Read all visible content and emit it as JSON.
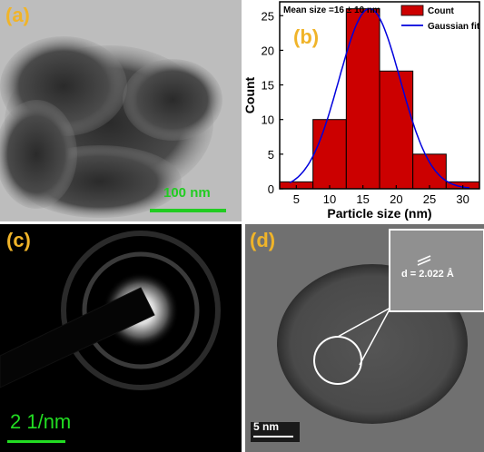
{
  "panels": {
    "a": {
      "letter": "(a)",
      "scale_label": "100 nm"
    },
    "b": {
      "letter": "(b)"
    },
    "c": {
      "letter": "(c)",
      "scale_label": "2 1/nm"
    },
    "d": {
      "letter": "(d)",
      "scale_label": "5 nm",
      "inset_label": "d = 2.022 Å"
    }
  },
  "chart_data": {
    "type": "bar",
    "title": "",
    "annotation": "Mean size =16 ± 10 nm",
    "xlabel": "Particle size (nm)",
    "ylabel": "Count",
    "xlim": [
      2.5,
      32.5
    ],
    "ylim": [
      0,
      27
    ],
    "xticks": [
      5,
      10,
      15,
      20,
      25,
      30
    ],
    "yticks": [
      0,
      5,
      10,
      15,
      20,
      25
    ],
    "bin_width": 5,
    "bins": [
      5,
      10,
      15,
      20,
      25,
      30
    ],
    "counts": [
      1,
      10,
      26,
      17,
      5,
      1
    ],
    "fit": {
      "name": "Gaussian fit",
      "mean": 16,
      "peak": 26,
      "sigma": 4.6
    },
    "legend": {
      "placement": "top-right",
      "entries": [
        "Count",
        "Gaussian fit"
      ]
    },
    "colors": {
      "bar": "#cc0000",
      "fit": "#0000dd"
    }
  }
}
